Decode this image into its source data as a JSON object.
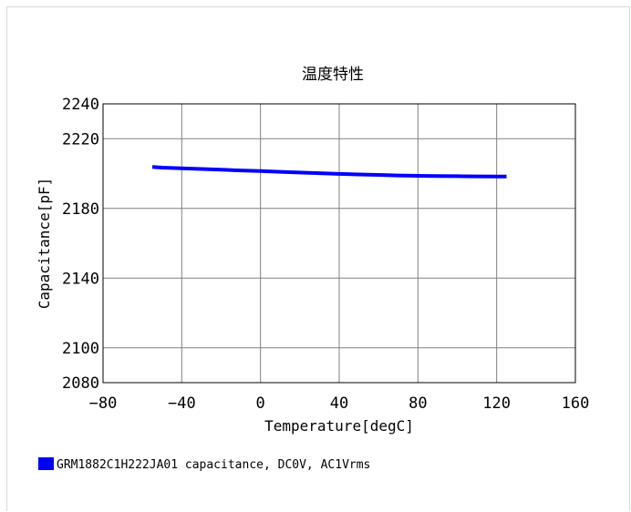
{
  "chart_data": {
    "type": "line",
    "title": "温度特性",
    "xlabel": "Temperature[degC]",
    "ylabel": "Capacitance[pF]",
    "xlim": [
      -80,
      160
    ],
    "ylim": [
      2080,
      2240
    ],
    "xticks": [
      -80,
      -40,
      0,
      40,
      80,
      120,
      160
    ],
    "yticks": [
      2080,
      2100,
      2140,
      2180,
      2220,
      2240
    ],
    "xgrid": [
      -40,
      0,
      40,
      80,
      120
    ],
    "ygrid": [
      2100,
      2140,
      2180,
      2220
    ],
    "grid": true,
    "legend_position": "bottom-left",
    "series": [
      {
        "name": "GRM1882C1H222JA01 capacitance, DC0V, AC1Vrms",
        "color": "#0000ff",
        "x": [
          -55,
          -50,
          -40,
          -30,
          -20,
          -10,
          0,
          10,
          20,
          30,
          40,
          50,
          60,
          70,
          80,
          90,
          100,
          110,
          120,
          125
        ],
        "y": [
          2203.8,
          2203.4,
          2203.0,
          2202.6,
          2202.2,
          2201.8,
          2201.4,
          2201.0,
          2200.6,
          2200.2,
          2199.8,
          2199.5,
          2199.2,
          2198.9,
          2198.7,
          2198.6,
          2198.5,
          2198.4,
          2198.3,
          2198.3
        ]
      }
    ]
  }
}
